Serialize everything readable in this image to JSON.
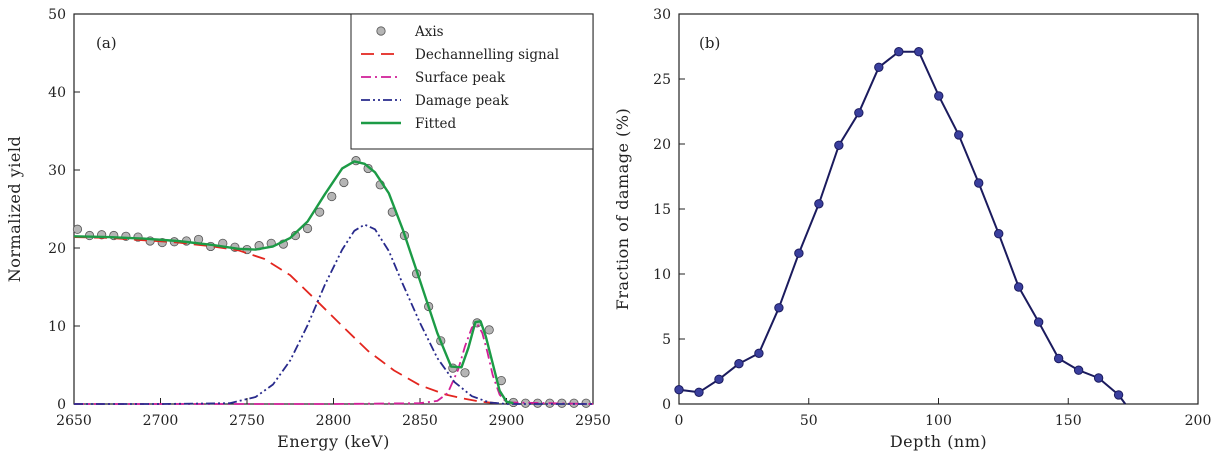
{
  "chart_data": [
    {
      "panel": "(a)",
      "type": "line",
      "xlabel": "Energy (keV)",
      "ylabel": "Normalized yield",
      "xlim": [
        2650,
        2950
      ],
      "ylim": [
        0,
        50
      ],
      "xticks": [
        2650,
        2700,
        2750,
        2800,
        2850,
        2900,
        2950
      ],
      "yticks": [
        0,
        10,
        20,
        30,
        40,
        50
      ],
      "grid": false,
      "legend_position": "top-right",
      "series": [
        {
          "name": "Axis",
          "style": "markers",
          "color": "#b5b5b5",
          "x": [
            2652,
            2659,
            2666,
            2673,
            2680,
            2687,
            2694,
            2701,
            2708,
            2715,
            2722,
            2729,
            2736,
            2743,
            2750,
            2757,
            2764,
            2771,
            2778,
            2785,
            2792,
            2799,
            2806,
            2813,
            2820,
            2827,
            2834,
            2841,
            2848,
            2855,
            2862,
            2869,
            2876,
            2883,
            2890,
            2897,
            2904,
            2911,
            2918,
            2925,
            2932,
            2939,
            2946
          ],
          "y": [
            22.4,
            21.6,
            21.7,
            21.6,
            21.5,
            21.4,
            20.9,
            20.7,
            20.8,
            20.9,
            21.1,
            20.2,
            20.6,
            20.1,
            19.8,
            20.3,
            20.6,
            20.5,
            21.6,
            22.5,
            24.6,
            26.6,
            28.4,
            31.2,
            30.2,
            28.1,
            24.6,
            21.6,
            16.7,
            12.5,
            8.1,
            4.6,
            4.0,
            10.4,
            9.5,
            3.0,
            0.2,
            0.1,
            0.1,
            0.1,
            0.1,
            0.1,
            0.1
          ]
        },
        {
          "name": "Dechannelling signal",
          "style": "dashed",
          "color": "#e3261f",
          "x": [
            2650,
            2670,
            2690,
            2710,
            2730,
            2745,
            2760,
            2775,
            2790,
            2805,
            2820,
            2835,
            2850,
            2865,
            2875,
            2885,
            2895
          ],
          "y": [
            21.4,
            21.3,
            21.0,
            20.7,
            20.2,
            19.7,
            18.6,
            16.5,
            13.3,
            10.0,
            6.8,
            4.3,
            2.4,
            1.2,
            0.7,
            0.3,
            0.1
          ]
        },
        {
          "name": "Surface peak",
          "style": "dashdot",
          "color": "#d11f97",
          "x": [
            2650,
            2700,
            2750,
            2800,
            2850,
            2860,
            2866,
            2872,
            2876,
            2880,
            2883,
            2886,
            2889,
            2892,
            2896,
            2900,
            2950
          ],
          "y": [
            0,
            0,
            0,
            0,
            0.1,
            0.4,
            1.4,
            4.4,
            7.4,
            9.8,
            10.3,
            9.1,
            6.6,
            3.7,
            1.2,
            0.2,
            0
          ]
        },
        {
          "name": "Damage peak",
          "style": "dashdotdot",
          "color": "#282a8c",
          "x": [
            2650,
            2700,
            2740,
            2755,
            2765,
            2775,
            2785,
            2795,
            2805,
            2812,
            2818,
            2824,
            2832,
            2840,
            2850,
            2860,
            2870,
            2880,
            2890,
            2900,
            2950
          ],
          "y": [
            0,
            0,
            0.1,
            0.9,
            2.5,
            5.6,
            10.1,
            15.3,
            19.8,
            22.2,
            23.0,
            22.4,
            19.6,
            15.4,
            10.4,
            5.9,
            2.8,
            1.0,
            0.2,
            0,
            0
          ]
        },
        {
          "name": "Fitted",
          "style": "solid",
          "color": "#1c9b46",
          "x": [
            2650,
            2670,
            2690,
            2710,
            2730,
            2745,
            2755,
            2765,
            2775,
            2785,
            2795,
            2805,
            2812,
            2818,
            2824,
            2832,
            2840,
            2850,
            2860,
            2868,
            2874,
            2878,
            2882,
            2885,
            2888,
            2892,
            2896,
            2900,
            2904
          ],
          "y": [
            21.5,
            21.4,
            21.2,
            20.9,
            20.4,
            19.9,
            19.8,
            20.2,
            21.3,
            23.4,
            26.9,
            30.2,
            31.1,
            30.8,
            29.7,
            27.0,
            22.4,
            15.8,
            9.1,
            4.8,
            4.7,
            7.2,
            10.5,
            10.6,
            8.7,
            5.2,
            1.7,
            0.3,
            0.1
          ]
        }
      ]
    },
    {
      "panel": "(b)",
      "type": "line",
      "xlabel": "Depth (nm)",
      "ylabel": "Fraction of damage (%)",
      "xlim": [
        0,
        200
      ],
      "ylim": [
        0,
        30
      ],
      "xticks": [
        0,
        50,
        100,
        150,
        200
      ],
      "yticks": [
        0,
        5,
        10,
        15,
        20,
        25,
        30
      ],
      "grid": false,
      "series": [
        {
          "name": "",
          "style": "line-markers",
          "color": "#1b1b5e",
          "x": [
            0,
            7.7,
            15.4,
            23.1,
            30.8,
            38.5,
            46.2,
            53.9,
            61.6,
            69.3,
            77,
            84.7,
            92.4,
            100.1,
            107.8,
            115.5,
            123.2,
            130.9,
            138.6,
            146.3,
            154,
            161.7,
            169.4,
            172
          ],
          "y": [
            1.1,
            0.9,
            1.9,
            3.1,
            3.9,
            7.4,
            11.6,
            15.4,
            19.9,
            22.4,
            25.9,
            27.1,
            27.1,
            23.7,
            20.7,
            17.0,
            13.1,
            9.0,
            6.3,
            3.5,
            2.6,
            2.0,
            0.7,
            0
          ]
        }
      ]
    }
  ]
}
